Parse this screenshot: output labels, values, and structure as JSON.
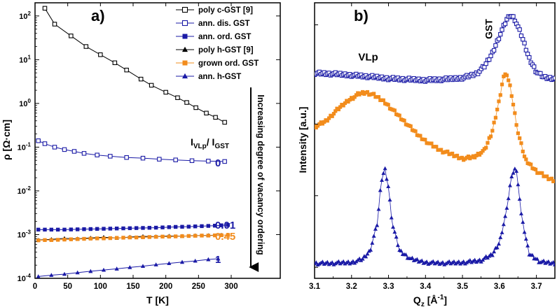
{
  "chart_data": [
    {
      "panel_label": "a)",
      "type": "scatter",
      "xlabel": "T [K]",
      "ylabel": "ρ [Ω·cm]",
      "xlim": [
        0,
        375
      ],
      "ylim": [
        0.0001,
        200
      ],
      "yscale": "log",
      "x_ticks": [
        0,
        50,
        100,
        150,
        200,
        250,
        300
      ],
      "y_tick_labels": [
        "10^-4",
        "10^-3",
        "10^-2",
        "10^-1",
        "10^0",
        "10^1",
        "10^2"
      ],
      "legend_placement": "top-right",
      "ratio_header": "I_VLp / I_GST",
      "arrow_annotation": "Increasing degree of vacancy ordering",
      "ratio_values": [
        {
          "text": "0",
          "color": "#1a1aa6",
          "y": 0.045
        },
        {
          "text": "0.01",
          "color": "#1a1aa6",
          "y": 0.0017
        },
        {
          "text": "0.45",
          "color": "#f28c1c",
          "y": 0.00095
        },
        {
          "text": "1",
          "color": "#1a1aa6",
          "y": 0.00028
        }
      ],
      "series": [
        {
          "name": "poly c-GST [9]",
          "marker": "open-square",
          "color": "#000000",
          "x": [
            15,
            30,
            55,
            78,
            100,
            122,
            140,
            162,
            178,
            200,
            218,
            232,
            246,
            262,
            276,
            290
          ],
          "y": [
            150,
            65,
            35,
            20,
            13,
            8.5,
            5.8,
            3.6,
            2.6,
            1.8,
            1.35,
            1.05,
            0.8,
            0.6,
            0.48,
            0.37
          ]
        },
        {
          "name": "ann. dis. GST",
          "marker": "open-square",
          "color": "#1a1aa6",
          "x": [
            5,
            15,
            30,
            45,
            60,
            75,
            95,
            115,
            140,
            165,
            190,
            215,
            240,
            265,
            290
          ],
          "y": [
            0.14,
            0.12,
            0.1,
            0.088,
            0.08,
            0.072,
            0.066,
            0.062,
            0.058,
            0.056,
            0.053,
            0.051,
            0.049,
            0.048,
            0.047
          ]
        },
        {
          "name": "ann. ord. GST",
          "marker": "filled-square",
          "color": "#1a1aa6",
          "x": [
            5,
            15,
            25,
            35,
            45,
            55,
            65,
            75,
            85,
            95,
            105,
            115,
            125,
            135,
            145,
            155,
            165,
            175,
            185,
            195,
            205,
            215,
            225,
            235,
            245,
            255,
            265,
            275,
            285,
            295
          ],
          "y": [
            0.0013,
            0.0013,
            0.0013,
            0.0013,
            0.0013,
            0.00131,
            0.00132,
            0.00133,
            0.00134,
            0.00135,
            0.00136,
            0.00137,
            0.00138,
            0.00139,
            0.0014,
            0.00141,
            0.00142,
            0.00143,
            0.00144,
            0.00146,
            0.00148,
            0.0015,
            0.00151,
            0.00152,
            0.00154,
            0.00156,
            0.00158,
            0.0016,
            0.00163,
            0.00166
          ]
        },
        {
          "name": "poly h-GST [9]",
          "marker": "filled-triangle",
          "color": "#000000",
          "x": [
            5,
            25,
            45,
            65,
            85,
            105,
            125,
            145,
            165,
            185,
            205,
            225,
            245,
            265,
            285
          ],
          "y": [
            0.00075,
            0.00078,
            0.00082,
            0.0008,
            0.00084,
            0.00087,
            0.00083,
            0.00088,
            0.00091,
            0.0009,
            0.00093,
            0.00092,
            0.00095,
            0.00096,
            0.00098
          ]
        },
        {
          "name": "grown ord. GST",
          "marker": "filled-square",
          "color": "#f28c1c",
          "x": [
            5,
            15,
            25,
            35,
            45,
            55,
            65,
            75,
            85,
            95,
            105,
            115,
            125,
            135,
            145,
            155,
            165,
            175,
            185,
            195,
            205,
            215,
            225,
            235,
            245,
            255,
            265,
            275,
            285,
            295
          ],
          "y": [
            0.00074,
            0.00075,
            0.00075,
            0.00076,
            0.00077,
            0.00078,
            0.00079,
            0.0008,
            0.00081,
            0.00082,
            0.00082,
            0.00083,
            0.00084,
            0.00085,
            0.00086,
            0.00086,
            0.00087,
            0.00088,
            0.00089,
            0.0009,
            0.0009,
            0.00091,
            0.00092,
            0.00093,
            0.00094,
            0.00095,
            0.00095,
            0.00096,
            0.00097,
            0.00098
          ]
        },
        {
          "name": "ann. h-GST",
          "marker": "filled-triangle",
          "color": "#1a1aa6",
          "x": [
            5,
            25,
            45,
            65,
            85,
            105,
            125,
            145,
            165,
            185,
            205,
            225,
            245,
            265,
            280
          ],
          "y": [
            0.00011,
            0.000118,
            0.000125,
            0.000135,
            0.000145,
            0.000155,
            0.000165,
            0.000178,
            0.00019,
            0.000205,
            0.00022,
            0.000235,
            0.00025,
            0.00027,
            0.00028
          ]
        }
      ]
    },
    {
      "panel_label": "b)",
      "type": "scatter",
      "xlabel": "Q_z [Å^-1]",
      "ylabel": "Intensity [a.u.]",
      "xlim": [
        3.1,
        3.75
      ],
      "x_ticks": [
        3.1,
        3.2,
        3.3,
        3.4,
        3.5,
        3.6,
        3.7
      ],
      "ylim": [
        0,
        1
      ],
      "annotations": [
        {
          "text": "VLp",
          "x": 3.245,
          "y": 0.79
        },
        {
          "text": "GST",
          "x": 3.58,
          "y": 0.905
        }
      ],
      "series": [
        {
          "marker": "open-square",
          "color": "#1a1aa6",
          "x": [
            3.1,
            3.15,
            3.2,
            3.25,
            3.3,
            3.35,
            3.4,
            3.45,
            3.5,
            3.52,
            3.54,
            3.56,
            3.58,
            3.6,
            3.62,
            3.63,
            3.64,
            3.66,
            3.68,
            3.7,
            3.72,
            3.75
          ],
          "y": [
            0.745,
            0.742,
            0.738,
            0.732,
            0.726,
            0.722,
            0.72,
            0.722,
            0.728,
            0.735,
            0.745,
            0.77,
            0.815,
            0.88,
            0.94,
            0.955,
            0.945,
            0.88,
            0.8,
            0.75,
            0.73,
            0.725
          ]
        },
        {
          "marker": "filled-square",
          "color": "#f28c1c",
          "x": [
            3.1,
            3.13,
            3.16,
            3.19,
            3.22,
            3.24,
            3.26,
            3.29,
            3.32,
            3.35,
            3.38,
            3.41,
            3.44,
            3.47,
            3.5,
            3.53,
            3.56,
            3.58,
            3.6,
            3.61,
            3.62,
            3.63,
            3.65,
            3.67,
            3.7,
            3.73,
            3.75
          ],
          "y": [
            0.55,
            0.57,
            0.61,
            0.645,
            0.67,
            0.675,
            0.665,
            0.64,
            0.6,
            0.56,
            0.52,
            0.49,
            0.465,
            0.45,
            0.435,
            0.44,
            0.465,
            0.53,
            0.65,
            0.73,
            0.74,
            0.69,
            0.53,
            0.43,
            0.39,
            0.365,
            0.355
          ]
        },
        {
          "marker": "filled-triangle",
          "color": "#1a1aa6",
          "x": [
            3.1,
            3.15,
            3.2,
            3.23,
            3.25,
            3.27,
            3.28,
            3.29,
            3.3,
            3.31,
            3.33,
            3.36,
            3.4,
            3.45,
            3.5,
            3.55,
            3.58,
            3.6,
            3.62,
            3.63,
            3.64,
            3.645,
            3.65,
            3.66,
            3.68,
            3.71,
            3.75
          ],
          "y": [
            0.055,
            0.055,
            0.058,
            0.07,
            0.1,
            0.2,
            0.35,
            0.4,
            0.33,
            0.2,
            0.1,
            0.07,
            0.058,
            0.055,
            0.058,
            0.065,
            0.085,
            0.13,
            0.25,
            0.35,
            0.4,
            0.395,
            0.35,
            0.22,
            0.09,
            0.06,
            0.055
          ]
        }
      ]
    }
  ]
}
